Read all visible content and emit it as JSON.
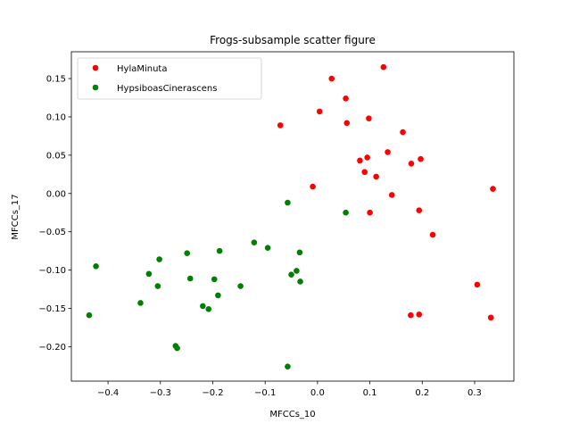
{
  "chart_data": {
    "type": "scatter",
    "title": "Frogs-subsample scatter figure",
    "xlabel": "MFCCs_10",
    "ylabel": "MFCCs_17",
    "xlim": [
      -0.47,
      0.375
    ],
    "ylim": [
      -0.245,
      0.185
    ],
    "xticks": [
      -0.4,
      -0.3,
      -0.2,
      -0.1,
      0.0,
      0.1,
      0.2,
      0.3
    ],
    "xtick_labels": [
      "−0.4",
      "−0.3",
      "−0.2",
      "−0.1",
      "0.0",
      "0.1",
      "0.2",
      "0.3"
    ],
    "yticks": [
      -0.2,
      -0.15,
      -0.1,
      -0.05,
      0.0,
      0.05,
      0.1,
      0.15
    ],
    "ytick_labels": [
      "−0.20",
      "−0.15",
      "−0.10",
      "−0.05",
      "0.00",
      "0.05",
      "0.10",
      "0.15"
    ],
    "grid": false,
    "legend_position": "top-left",
    "series": [
      {
        "name": "HylaMinuta",
        "color": "#ff0000",
        "points": [
          [
            0.126,
            0.165
          ],
          [
            0.027,
            0.15
          ],
          [
            0.054,
            0.124
          ],
          [
            -0.071,
            0.089
          ],
          [
            0.004,
            0.107
          ],
          [
            0.056,
            0.092
          ],
          [
            0.098,
            0.098
          ],
          [
            0.163,
            0.08
          ],
          [
            0.134,
            0.054
          ],
          [
            0.081,
            0.043
          ],
          [
            0.095,
            0.047
          ],
          [
            0.179,
            0.039
          ],
          [
            0.197,
            0.045
          ],
          [
            0.09,
            0.028
          ],
          [
            0.112,
            0.022
          ],
          [
            -0.009,
            0.009
          ],
          [
            0.142,
            -0.002
          ],
          [
            0.335,
            0.006
          ],
          [
            0.1,
            -0.025
          ],
          [
            0.194,
            -0.022
          ],
          [
            0.22,
            -0.054
          ],
          [
            0.305,
            -0.119
          ],
          [
            0.178,
            -0.159
          ],
          [
            0.194,
            -0.158
          ],
          [
            0.331,
            -0.162
          ]
        ]
      },
      {
        "name": "HypsiboasCinerascens",
        "color": "#008000",
        "points": [
          [
            -0.057,
            -0.012
          ],
          [
            0.054,
            -0.025
          ],
          [
            -0.121,
            -0.064
          ],
          [
            -0.095,
            -0.071
          ],
          [
            -0.034,
            -0.077
          ],
          [
            -0.187,
            -0.075
          ],
          [
            -0.249,
            -0.078
          ],
          [
            -0.302,
            -0.086
          ],
          [
            -0.423,
            -0.095
          ],
          [
            -0.04,
            -0.101
          ],
          [
            -0.05,
            -0.106
          ],
          [
            -0.322,
            -0.105
          ],
          [
            -0.243,
            -0.111
          ],
          [
            -0.197,
            -0.112
          ],
          [
            -0.033,
            -0.115
          ],
          [
            -0.147,
            -0.121
          ],
          [
            -0.305,
            -0.121
          ],
          [
            -0.19,
            -0.133
          ],
          [
            -0.338,
            -0.143
          ],
          [
            -0.219,
            -0.147
          ],
          [
            -0.208,
            -0.151
          ],
          [
            -0.436,
            -0.159
          ],
          [
            -0.271,
            -0.199
          ],
          [
            -0.268,
            -0.202
          ],
          [
            -0.057,
            -0.226
          ]
        ]
      }
    ]
  }
}
